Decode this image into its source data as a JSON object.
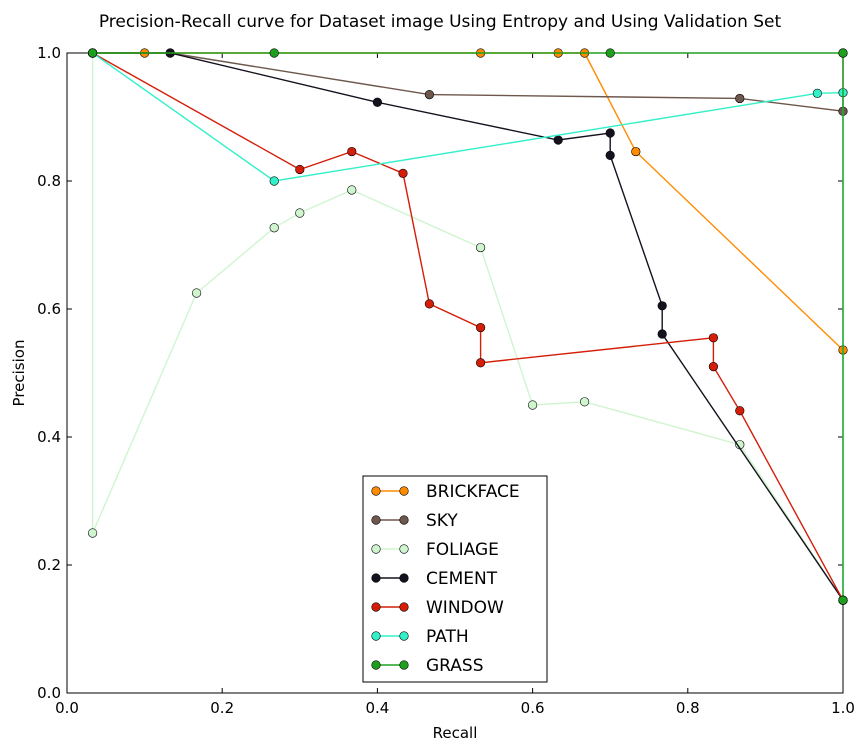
{
  "chart_data": {
    "type": "line",
    "title": "Precision-Recall curve for Dataset image Using Entropy and Using Validation Set",
    "xlabel": "Recall",
    "ylabel": "Precision",
    "xlim": [
      0.0,
      1.0
    ],
    "ylim": [
      0.0,
      1.0
    ],
    "xticks": [
      "0.0",
      "0.2",
      "0.4",
      "0.6",
      "0.8",
      "1.0"
    ],
    "yticks": [
      "0.0",
      "0.2",
      "0.4",
      "0.6",
      "0.8",
      "1.0"
    ],
    "grid": false,
    "legend_position": "bottom-center",
    "series": [
      {
        "name": "BRICKFACE",
        "color": "#ff8c00",
        "points": [
          [
            0.033,
            1.0
          ],
          [
            0.1,
            1.0
          ],
          [
            0.533,
            1.0
          ],
          [
            0.633,
            1.0
          ],
          [
            0.667,
            1.0
          ],
          [
            0.733,
            0.846
          ],
          [
            1.0,
            0.536
          ]
        ]
      },
      {
        "name": "SKY",
        "color": "#6e574c",
        "points": [
          [
            0.133,
            1.0
          ],
          [
            0.467,
            0.935
          ],
          [
            0.867,
            0.929
          ],
          [
            1.0,
            0.909
          ],
          [
            1.0,
            1.0
          ]
        ]
      },
      {
        "name": "FOLIAGE",
        "color": "#cff5cf",
        "points": [
          [
            0.033,
            1.0
          ],
          [
            0.033,
            0.25
          ],
          [
            0.167,
            0.625
          ],
          [
            0.267,
            0.727
          ],
          [
            0.3,
            0.75
          ],
          [
            0.367,
            0.786
          ],
          [
            0.533,
            0.696
          ],
          [
            0.6,
            0.45
          ],
          [
            0.667,
            0.455
          ],
          [
            0.867,
            0.388
          ],
          [
            1.0,
            0.145
          ]
        ]
      },
      {
        "name": "CEMENT",
        "color": "#15121f",
        "points": [
          [
            0.033,
            1.0
          ],
          [
            0.133,
            1.0
          ],
          [
            0.4,
            0.923
          ],
          [
            0.633,
            0.864
          ],
          [
            0.7,
            0.875
          ],
          [
            0.7,
            0.84
          ],
          [
            0.767,
            0.605
          ],
          [
            0.767,
            0.561
          ],
          [
            1.0,
            0.145
          ]
        ]
      },
      {
        "name": "WINDOW",
        "color": "#d41e08",
        "points": [
          [
            0.033,
            1.0
          ],
          [
            0.3,
            0.818
          ],
          [
            0.367,
            0.846
          ],
          [
            0.433,
            0.812
          ],
          [
            0.467,
            0.608
          ],
          [
            0.533,
            0.571
          ],
          [
            0.533,
            0.516
          ],
          [
            0.833,
            0.555
          ],
          [
            0.833,
            0.51
          ],
          [
            0.867,
            0.441
          ],
          [
            1.0,
            0.145
          ]
        ]
      },
      {
        "name": "PATH",
        "color": "#32f0c8",
        "points": [
          [
            0.033,
            1.0
          ],
          [
            0.267,
            0.8
          ],
          [
            0.967,
            0.937
          ],
          [
            1.0,
            0.938
          ],
          [
            1.0,
            0.145
          ]
        ]
      },
      {
        "name": "GRASS",
        "color": "#1ea01e",
        "points": [
          [
            0.033,
            1.0
          ],
          [
            0.267,
            1.0
          ],
          [
            0.7,
            1.0
          ],
          [
            1.0,
            1.0
          ],
          [
            1.0,
            0.145
          ]
        ]
      }
    ]
  }
}
